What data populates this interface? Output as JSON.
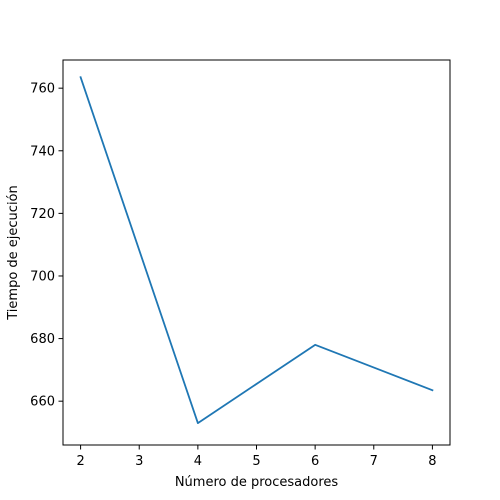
{
  "chart_data": {
    "type": "line",
    "title": "",
    "xlabel": "Número de procesadores",
    "ylabel": "Tiempo de ejecución",
    "xlim": [
      1.7,
      8.3
    ],
    "ylim": [
      646,
      769
    ],
    "x_ticks": [
      2,
      3,
      4,
      5,
      6,
      7,
      8
    ],
    "y_ticks": [
      660,
      680,
      700,
      720,
      740,
      760
    ],
    "grid": false,
    "legend": "none",
    "series": [
      {
        "color": "#1f77b4",
        "x": [
          2,
          4,
          6,
          8
        ],
        "y": [
          763.5,
          653.0,
          678.0,
          663.5
        ]
      }
    ]
  }
}
